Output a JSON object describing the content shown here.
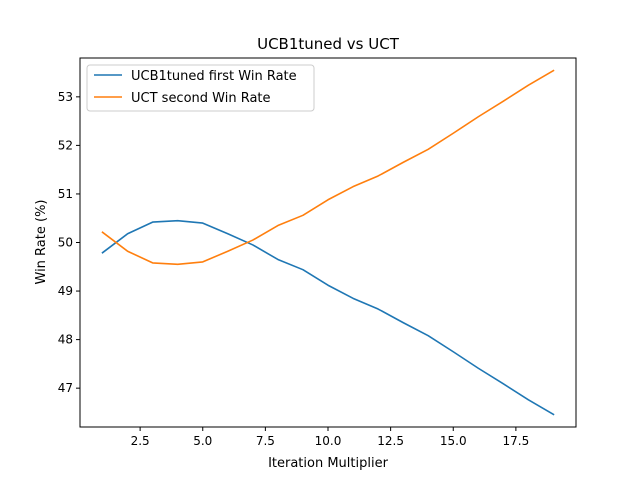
{
  "chart_data": {
    "type": "line",
    "title": "UCB1tuned vs UCT",
    "xlabel": "Iteration Multiplier",
    "ylabel": "Win Rate (%)",
    "xlim": [
      0.1,
      19.9
    ],
    "ylim": [
      46.2,
      53.8
    ],
    "xticks": [
      2.5,
      5.0,
      7.5,
      10.0,
      12.5,
      15.0,
      17.5
    ],
    "xtick_labels": [
      "2.5",
      "5.0",
      "7.5",
      "10.0",
      "12.5",
      "15.0",
      "17.5"
    ],
    "yticks": [
      47,
      48,
      49,
      50,
      51,
      52,
      53
    ],
    "ytick_labels": [
      "47",
      "48",
      "49",
      "50",
      "51",
      "52",
      "53"
    ],
    "grid": false,
    "legend_position": "top-left",
    "x": [
      1,
      2,
      3,
      4,
      5,
      6,
      7,
      8,
      9,
      10,
      11,
      12,
      13,
      14,
      15,
      16,
      17,
      18,
      19
    ],
    "series": [
      {
        "name": "UCB1tuned first Win Rate",
        "color": "#1f77b4",
        "values": [
          49.79,
          50.18,
          50.42,
          50.45,
          50.4,
          50.18,
          49.95,
          49.65,
          49.44,
          49.12,
          48.85,
          48.63,
          48.35,
          48.08,
          47.75,
          47.41,
          47.09,
          46.76,
          46.46
        ]
      },
      {
        "name": "UCT second Win Rate",
        "color": "#ff7f0e",
        "values": [
          50.21,
          49.82,
          49.58,
          49.55,
          49.6,
          49.82,
          50.05,
          50.35,
          50.56,
          50.88,
          51.15,
          51.37,
          51.65,
          51.92,
          52.25,
          52.59,
          52.91,
          53.24,
          53.54
        ]
      }
    ]
  }
}
